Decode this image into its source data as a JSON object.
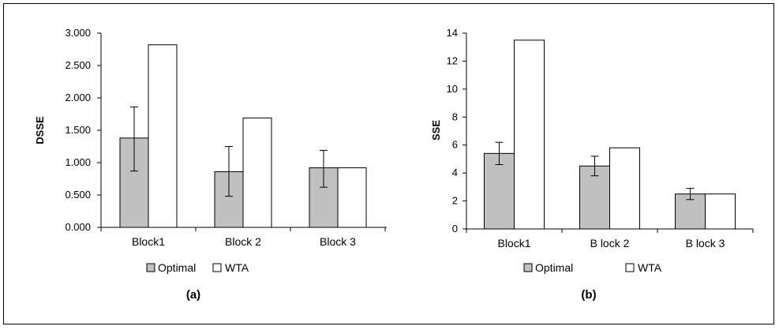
{
  "panels": [
    {
      "label": "(a)",
      "legend": [
        {
          "name": "Optimal",
          "color": "#c0c0c0"
        },
        {
          "name": "WTA",
          "color": "#ffffff"
        }
      ]
    },
    {
      "label": "(b)",
      "legend": [
        {
          "name": "Optimal",
          "color": "#c0c0c0"
        },
        {
          "name": "WTA",
          "color": "#ffffff"
        }
      ]
    }
  ],
  "chart_data": [
    {
      "type": "bar",
      "title": "",
      "xlabel": "",
      "ylabel": "DSSE",
      "categories": [
        "Block1",
        "Block 2",
        "Block 3"
      ],
      "ylim": [
        0,
        3
      ],
      "yticks": [
        "0.000",
        "0.500",
        "1.000",
        "1.500",
        "2.000",
        "2.500",
        "3.000"
      ],
      "ytick_values": [
        0,
        0.5,
        1,
        1.5,
        2,
        2.5,
        3
      ],
      "legend_position": "bottom",
      "series": [
        {
          "name": "Optimal",
          "values": [
            1.38,
            0.86,
            0.92
          ],
          "error": [
            [
              0.87,
              1.86
            ],
            [
              0.48,
              1.25
            ],
            [
              0.62,
              1.19
            ]
          ],
          "color": "#c0c0c0"
        },
        {
          "name": "WTA",
          "values": [
            2.82,
            1.69,
            0.92
          ],
          "color": "#ffffff"
        }
      ]
    },
    {
      "type": "bar",
      "title": "",
      "xlabel": "",
      "ylabel": "SSE",
      "categories": [
        "Block1",
        "B lock 2",
        "B lock 3"
      ],
      "ylim": [
        0,
        14
      ],
      "yticks": [
        "0",
        "2",
        "4",
        "6",
        "8",
        "10",
        "12",
        "14"
      ],
      "ytick_values": [
        0,
        2,
        4,
        6,
        8,
        10,
        12,
        14
      ],
      "legend_position": "bottom",
      "series": [
        {
          "name": "Optimal",
          "values": [
            5.4,
            4.5,
            2.5
          ],
          "error": [
            [
              4.6,
              6.2
            ],
            [
              3.8,
              5.2
            ],
            [
              2.1,
              2.9
            ]
          ],
          "color": "#c0c0c0"
        },
        {
          "name": "WTA",
          "values": [
            13.5,
            5.8,
            2.5
          ],
          "color": "#ffffff"
        }
      ]
    }
  ]
}
